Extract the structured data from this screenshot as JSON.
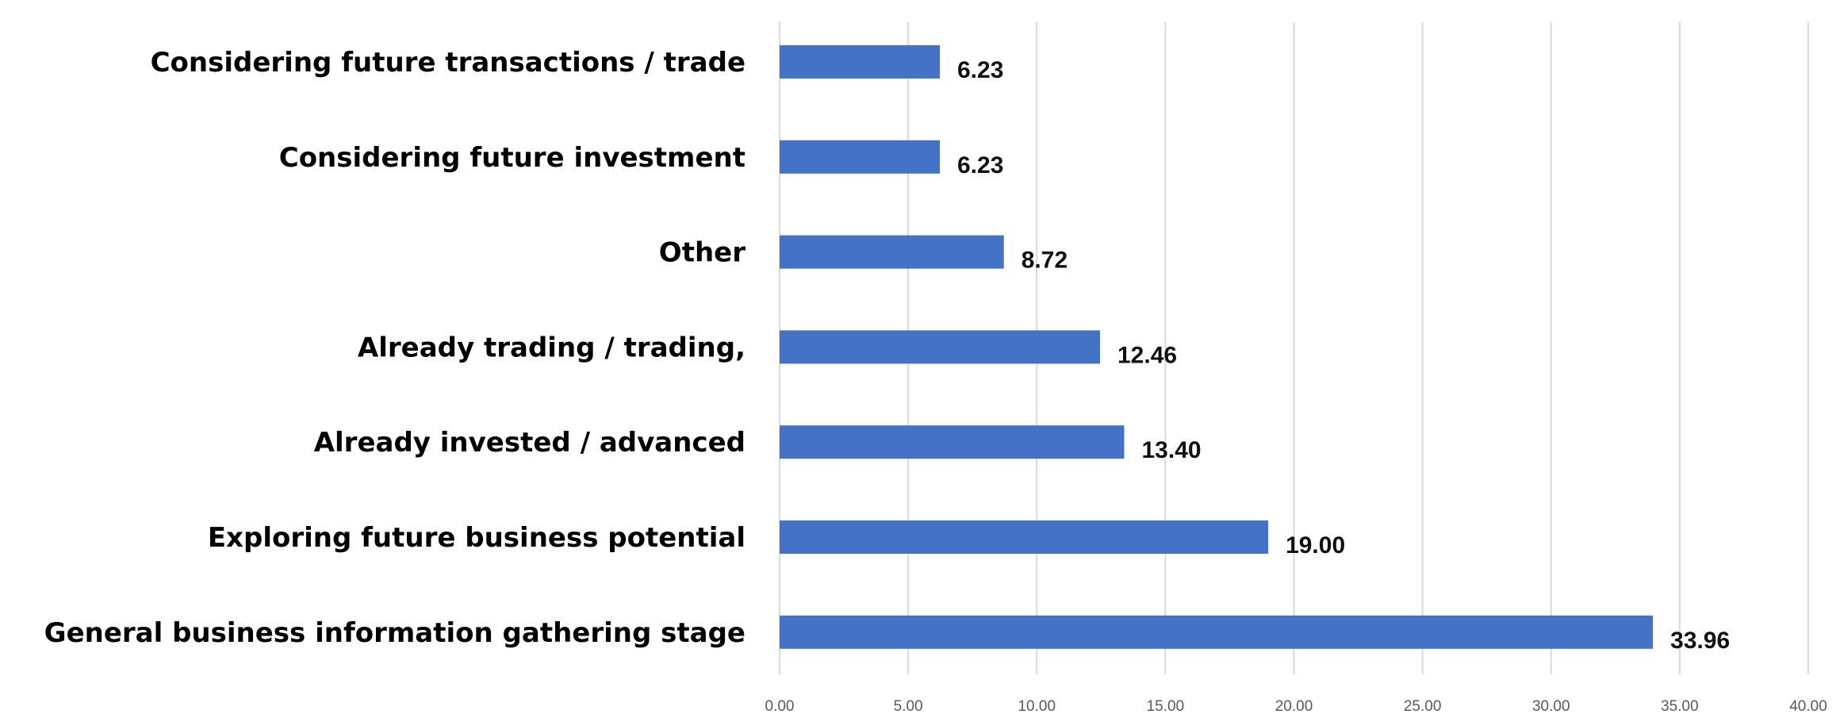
{
  "chart_data": {
    "type": "bar",
    "orientation": "horizontal",
    "categories": [
      "Considering future transactions / trade",
      "Considering future investment",
      "Other",
      "Already trading / trading,",
      "Already invested / advanced",
      "Exploring future business potential",
      "General business information gathering stage"
    ],
    "values": [
      6.23,
      6.23,
      8.72,
      12.46,
      13.4,
      19.0,
      33.96
    ],
    "value_labels": [
      "6.23",
      "6.23",
      "8.72",
      "12.46",
      "13.40",
      "19.00",
      "33.96"
    ],
    "xlim": [
      0,
      40
    ],
    "xticks": [
      0,
      5,
      10,
      15,
      20,
      25,
      30,
      35,
      40
    ],
    "xtick_labels": [
      "0.00",
      "5.00",
      "10.00",
      "15.00",
      "20.00",
      "25.00",
      "30.00",
      "35.00",
      "40.00"
    ],
    "title": "",
    "xlabel": "",
    "ylabel": "",
    "grid": "vertical",
    "legend": "none",
    "colors": {
      "bar": "#4472c4",
      "grid": "#d9d9d9",
      "tick_text": "#595959",
      "label_text": "#000000"
    }
  }
}
